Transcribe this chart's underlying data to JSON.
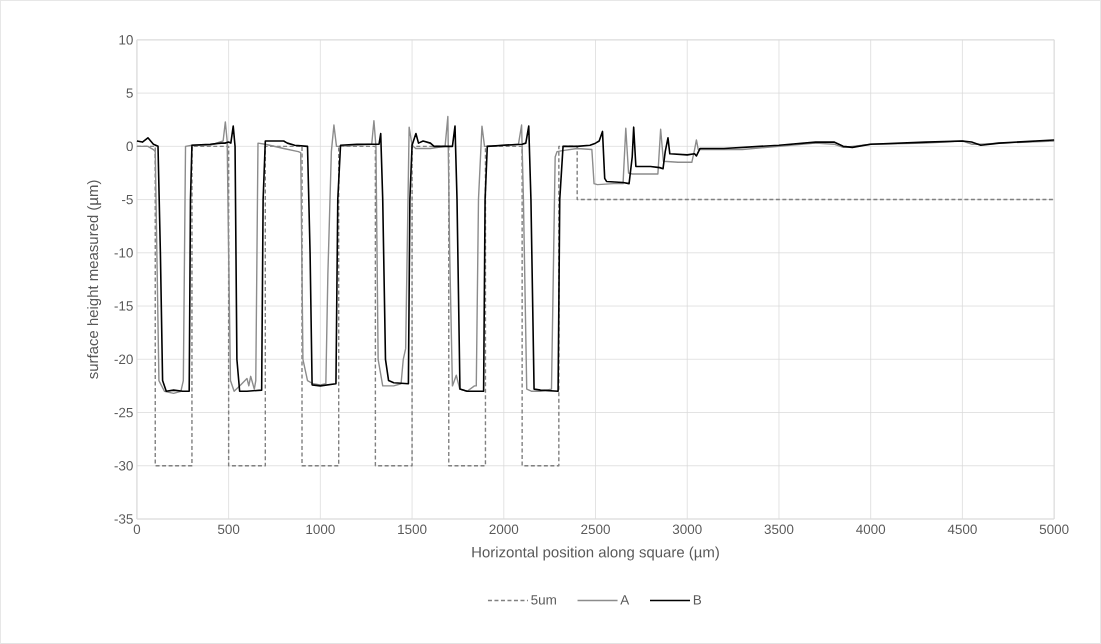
{
  "chart_data": {
    "type": "line",
    "xlabel": "Horizontal position along square (µm)",
    "ylabel": "surface height measured (µm)",
    "xlim": [
      0,
      5000
    ],
    "xticks": [
      0,
      500,
      1000,
      1500,
      2000,
      2500,
      3000,
      3500,
      4000,
      4500,
      5000
    ],
    "ylim": [
      -35,
      10
    ],
    "yticks": [
      -35,
      -30,
      -25,
      -20,
      -15,
      -10,
      -5,
      0,
      5,
      10
    ],
    "grid": true,
    "legend": "bottom",
    "marker": "none",
    "series": [
      {
        "name": "5um",
        "color": "#808080",
        "line_style": "dashed",
        "x": [
          0,
          100,
          100,
          300,
          300,
          500,
          500,
          700,
          700,
          900,
          900,
          1100,
          1100,
          1300,
          1300,
          1500,
          1500,
          1700,
          1700,
          1900,
          1900,
          2100,
          2100,
          2300,
          2300,
          2400,
          2400,
          5000
        ],
        "values": [
          0,
          0,
          -30,
          -30,
          0,
          0,
          -30,
          -30,
          0,
          0,
          -30,
          -30,
          0,
          0,
          -30,
          -30,
          0,
          0,
          -30,
          -30,
          0,
          0,
          -30,
          -30,
          0,
          0,
          -5,
          -5
        ]
      },
      {
        "name": "A",
        "color": "#8c8c8c",
        "line_style": "solid",
        "x": [
          0,
          60,
          90,
          100,
          120,
          150,
          200,
          240,
          253,
          265,
          300,
          400,
          470,
          482,
          492,
          500,
          510,
          530,
          560,
          600,
          610,
          620,
          640,
          648,
          660,
          700,
          800,
          880,
          893,
          905,
          930,
          960,
          1000,
          1030,
          1041,
          1060,
          1074,
          1088,
          1100,
          1200,
          1280,
          1292,
          1303,
          1315,
          1340,
          1400,
          1440,
          1452,
          1465,
          1484,
          1500,
          1520,
          1600,
          1680,
          1695,
          1705,
          1720,
          1741,
          1760,
          1800,
          1840,
          1850,
          1862,
          1881,
          1895,
          1920,
          2000,
          2080,
          2097,
          2107,
          2125,
          2150,
          2200,
          2260,
          2280,
          2290,
          2320,
          2400,
          2480,
          2492,
          2510,
          2600,
          2650,
          2665,
          2680,
          2700,
          2800,
          2840,
          2855,
          2870,
          2950,
          3025,
          3040,
          3050,
          3060,
          3100,
          3200,
          3300,
          3500,
          3700,
          3800,
          3850,
          3900,
          4000,
          4300,
          4500,
          4550,
          4600,
          4700,
          5000
        ],
        "values": [
          0,
          0,
          -0.3,
          -0.5,
          -22,
          -23,
          -23.2,
          -23,
          -22,
          0,
          0.1,
          0.1,
          0.5,
          2.3,
          0.5,
          -10,
          -22,
          -23,
          -22.5,
          -21.8,
          -22.5,
          -21.6,
          -22.8,
          -22,
          0.3,
          0.2,
          -0.2,
          -0.5,
          -0.6,
          -20,
          -22,
          -22.3,
          -22.4,
          -22.3,
          -12,
          -0.5,
          2.0,
          0,
          0,
          0.1,
          0.2,
          2.4,
          0,
          -20,
          -22.5,
          -22.5,
          -22.3,
          -20,
          -19,
          1.8,
          0.1,
          -0.2,
          -0.2,
          0,
          2.8,
          -10,
          -22.5,
          -21.5,
          -22.8,
          -23,
          -22.5,
          -22.5,
          -5,
          1.9,
          0,
          0,
          0.1,
          0.2,
          2.0,
          -5,
          -22.8,
          -23,
          -23,
          -22.8,
          -1,
          -0.5,
          -0.4,
          -0.2,
          -0.3,
          -3.5,
          -3.6,
          -3.5,
          -3.5,
          1.7,
          -2.5,
          -2.6,
          -2.6,
          -2.6,
          1.6,
          -1.4,
          -1.5,
          -1.5,
          -0.3,
          0.6,
          -0.3,
          -0.3,
          -0.3,
          -0.3,
          0,
          0.3,
          0.2,
          -0.1,
          0,
          0.2,
          0.3,
          0.5,
          0.2,
          0.2,
          0.3,
          0.5
        ]
      },
      {
        "name": "B",
        "color": "#000000",
        "line_style": "solid",
        "x": [
          0,
          30,
          60,
          90,
          115,
          128,
          140,
          160,
          200,
          250,
          285,
          292,
          300,
          400,
          460,
          480,
          500,
          512,
          525,
          535,
          545,
          560,
          600,
          680,
          688,
          700,
          800,
          820,
          860,
          930,
          944,
          955,
          1000,
          1085,
          1095,
          1110,
          1200,
          1300,
          1320,
          1329,
          1340,
          1355,
          1372,
          1400,
          1480,
          1488,
          1500,
          1521,
          1535,
          1560,
          1600,
          1620,
          1720,
          1734,
          1745,
          1761,
          1800,
          1890,
          1898,
          1910,
          2000,
          2100,
          2120,
          2136,
          2148,
          2165,
          2200,
          2296,
          2305,
          2323,
          2400,
          2470,
          2500,
          2520,
          2538,
          2550,
          2560,
          2650,
          2683,
          2700,
          2708,
          2720,
          2800,
          2850,
          2868,
          2880,
          2895,
          2905,
          3000,
          3040,
          3050,
          3070,
          3200,
          3500,
          3700,
          3800,
          3850,
          3900,
          4000,
          4300,
          4500,
          4550,
          4600,
          4700,
          5000
        ],
        "values": [
          0.5,
          0.4,
          0.8,
          0.2,
          0,
          -10,
          -22,
          -23,
          -22.9,
          -23,
          -23,
          -5,
          0.1,
          0.2,
          0.3,
          0.3,
          0.4,
          0.3,
          1.9,
          0,
          -20,
          -23,
          -23,
          -22.9,
          -5,
          0.5,
          0.5,
          0.3,
          0.1,
          0,
          -10,
          -22.4,
          -22.5,
          -22.3,
          -5,
          0.1,
          0.2,
          0.2,
          0.2,
          1.2,
          -5,
          -20,
          -22,
          -22.2,
          -22.3,
          -5,
          0.1,
          1.2,
          0.3,
          0.5,
          0.3,
          0,
          0,
          1.9,
          -5,
          -22.8,
          -23,
          -23,
          -5,
          0,
          0.1,
          0.2,
          0.3,
          1.9,
          -5,
          -22.8,
          -22.9,
          -23,
          -5,
          0,
          0,
          0.1,
          0.3,
          0.5,
          1.4,
          -3.0,
          -3.3,
          -3.4,
          -3.5,
          -1,
          1.8,
          -1.9,
          -1.9,
          -2.0,
          -2.1,
          -0.5,
          0.8,
          -0.7,
          -0.8,
          -0.7,
          -0.9,
          -0.2,
          -0.2,
          0.1,
          0.4,
          0.4,
          0,
          -0.1,
          0.2,
          0.4,
          0.5,
          0.4,
          0.1,
          0.3,
          0.6
        ]
      }
    ]
  }
}
